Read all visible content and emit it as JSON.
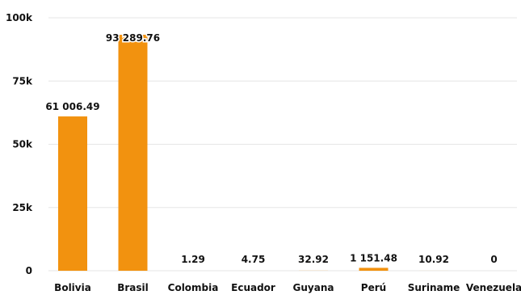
{
  "chart_data": {
    "type": "bar",
    "title": "",
    "xlabel": "",
    "ylabel": "",
    "categories": [
      "Bolivia",
      "Brasil",
      "Colombia",
      "Ecuador",
      "Guyana",
      "Perú",
      "Suriname",
      "Venezuela"
    ],
    "values": [
      61006.49,
      93289.76,
      1.29,
      4.75,
      32.92,
      1151.48,
      10.92,
      0
    ],
    "value_labels": [
      "61 006.49",
      "93 289.76",
      "1.29",
      "4.75",
      "32.92",
      "1 151.48",
      "10.92",
      "0"
    ],
    "ylim": [
      0,
      100000
    ],
    "yticks": [
      0,
      25000,
      50000,
      75000,
      100000
    ],
    "ytick_labels": [
      "0",
      "25k",
      "50k",
      "75k",
      "100k"
    ],
    "grid": true,
    "legend": "none",
    "bar_color": "#F2920F"
  }
}
